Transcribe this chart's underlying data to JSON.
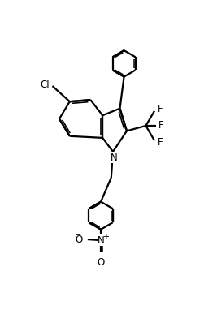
{
  "background_color": "#ffffff",
  "line_color": "#000000",
  "line_width": 1.6,
  "fig_width": 2.67,
  "fig_height": 3.87,
  "dpi": 100,
  "xlim": [
    -0.5,
    3.2
  ],
  "ylim": [
    -4.2,
    2.8
  ]
}
